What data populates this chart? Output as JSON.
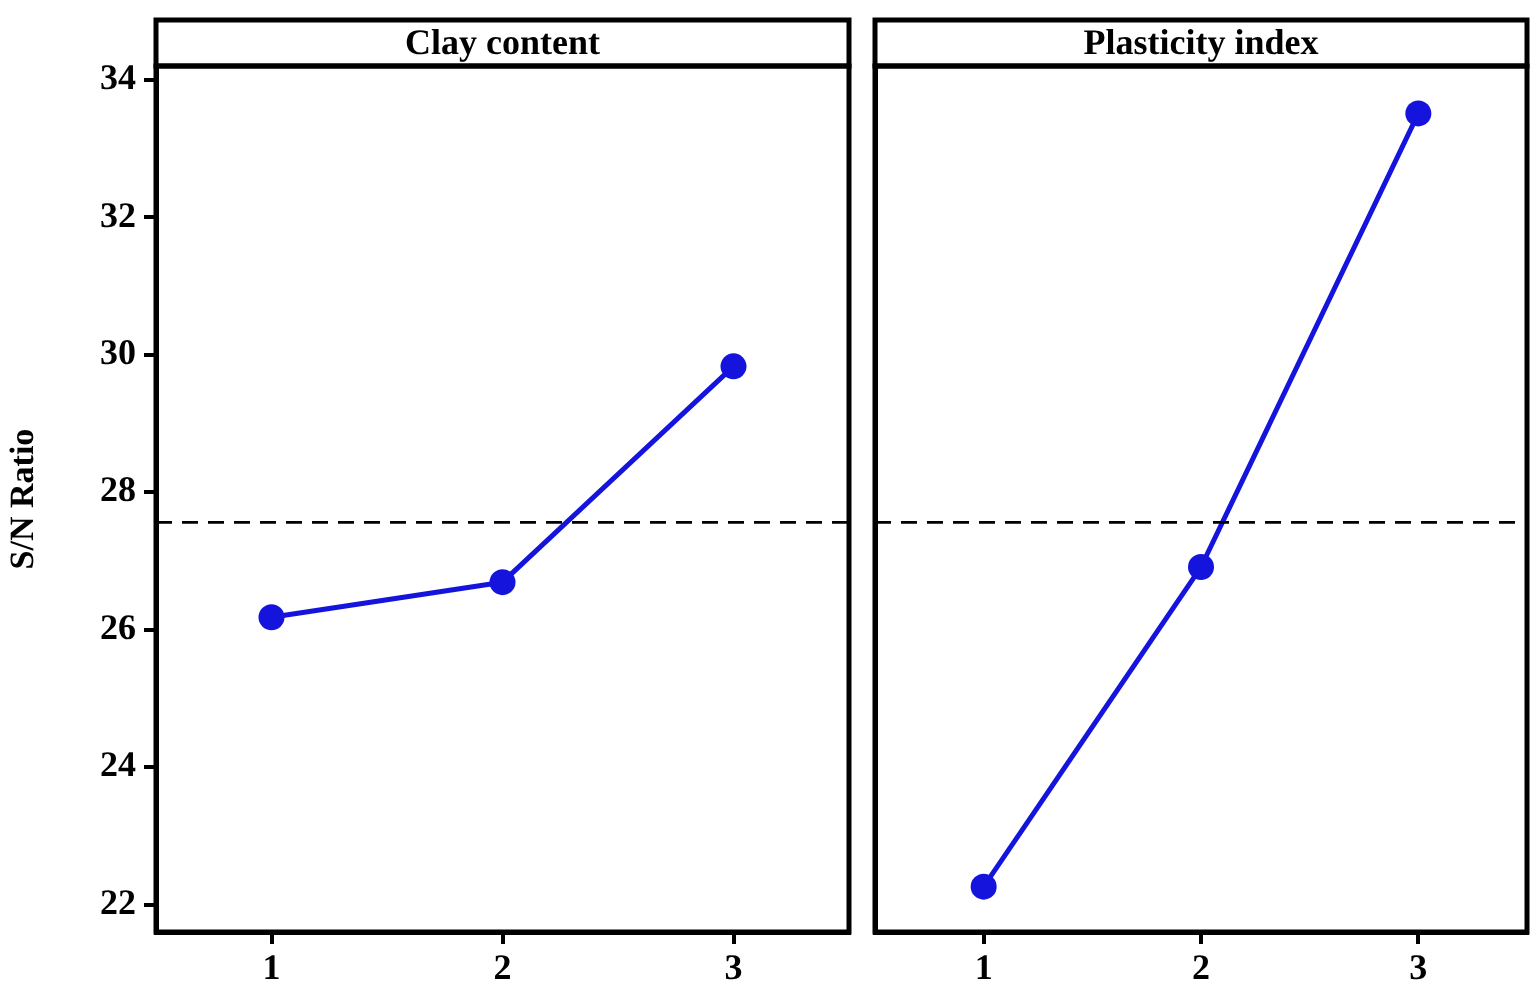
{
  "chart_data": [
    {
      "type": "line",
      "title": "Clay content",
      "ylabel": "S/N Ratio",
      "categories": [
        "1",
        "2",
        "3"
      ],
      "series": [
        {
          "color": "#1414dc",
          "values": [
            26.18,
            26.69,
            29.83
          ]
        }
      ],
      "ylim": [
        21.6,
        34.2
      ],
      "yticks": [
        22,
        24,
        26,
        28,
        30,
        32,
        34
      ],
      "marker": "circle",
      "line_style": "solid",
      "grid": false,
      "legend": false,
      "ref_lines": [
        {
          "axis": "y",
          "value": 27.56,
          "color": "#000000",
          "line_style": "dashed"
        }
      ]
    },
    {
      "type": "line",
      "title": "Plasticity index",
      "categories": [
        "1",
        "2",
        "3"
      ],
      "series": [
        {
          "color": "#1414dc",
          "values": [
            22.26,
            26.91,
            33.51
          ]
        }
      ],
      "ylim": [
        21.6,
        34.2
      ],
      "yticks": [
        22,
        24,
        26,
        28,
        30,
        32,
        34
      ],
      "tick_labels": "x",
      "marker": "circle",
      "line_style": "solid",
      "grid": false,
      "legend": false,
      "ref_lines": [
        {
          "axis": "y",
          "value": 27.56,
          "color": "#000000",
          "line_style": "dashed"
        }
      ]
    }
  ]
}
